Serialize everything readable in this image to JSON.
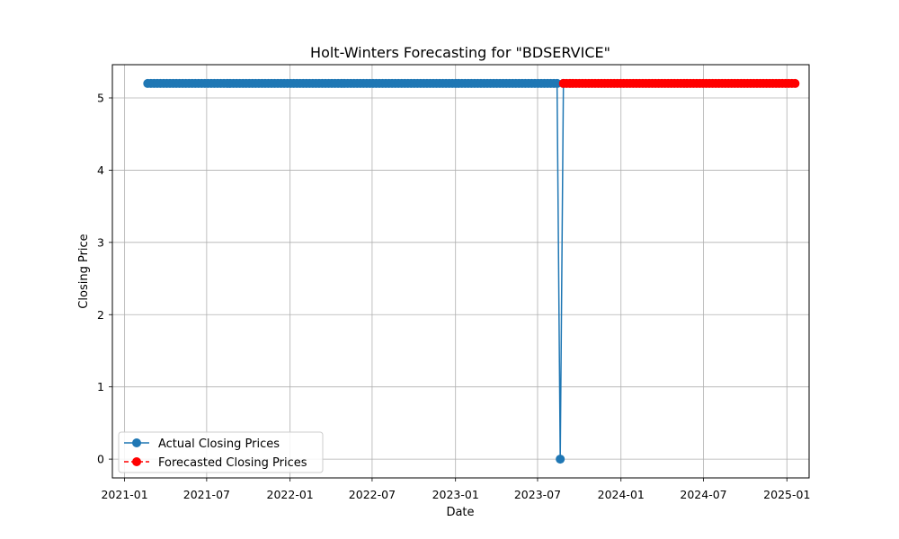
{
  "chart_data": {
    "type": "line",
    "title": "Holt-Winters Forecasting for \"BDSERVICE\"",
    "xlabel": "Date",
    "ylabel": "Closing Price",
    "xlim": [
      "2020-12-05",
      "2025-02-19"
    ],
    "ylim": [
      -0.26,
      5.46
    ],
    "x_ticks": [
      "2021-01",
      "2021-07",
      "2022-01",
      "2022-07",
      "2023-01",
      "2023-07",
      "2024-01",
      "2024-07",
      "2025-01"
    ],
    "y_ticks": [
      0,
      1,
      2,
      3,
      4,
      5
    ],
    "grid": true,
    "legend_position": "lower-left",
    "series": [
      {
        "name": "Actual Closing Prices",
        "color": "#1f77b4",
        "line_style": "solid",
        "marker": "circle",
        "start": "2021-02-21",
        "end": "2023-08-13",
        "frequency_days": 7,
        "value": 5.2,
        "outliers": [
          {
            "x": "2023-08-20",
            "y": 0
          },
          {
            "x": "2023-08-27",
            "y": 5.2
          }
        ]
      },
      {
        "name": "Forecasted Closing Prices",
        "color": "#ff0000",
        "line_style": "dashed",
        "marker": "circle",
        "start": "2023-08-27",
        "end": "2025-01-19",
        "frequency_days": 7,
        "value": 5.2
      }
    ]
  }
}
